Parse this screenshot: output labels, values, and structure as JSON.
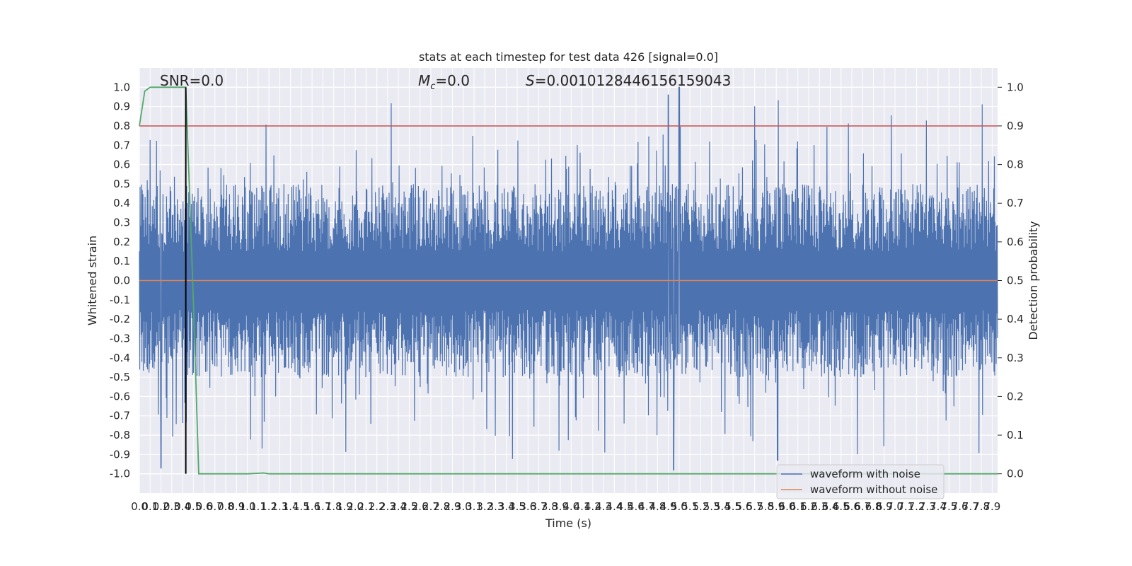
{
  "chart_data": {
    "type": "line",
    "title": "stats at each timestep for test data 426 [signal=0.0]",
    "xlabel": "Time (s)",
    "ylabel": "Whitened strain",
    "y2label": "Detection probability",
    "xlim": [
      0.0,
      7.95
    ],
    "ylim": [
      -1.1,
      1.1
    ],
    "y2lim": [
      -0.05,
      1.05
    ],
    "x_ticks": [
      "0.0",
      "0.1",
      "0.2",
      "0.3",
      "0.4",
      "0.5",
      "0.6",
      "0.7",
      "0.8",
      "0.9",
      "1.0",
      "1.1",
      "1.2",
      "1.3",
      "1.4",
      "1.5",
      "1.6",
      "1.7",
      "1.8",
      "1.9",
      "2.0",
      "2.1",
      "2.2",
      "2.3",
      "2.4",
      "2.5",
      "2.6",
      "2.7",
      "2.8",
      "2.9",
      "3.0",
      "3.1",
      "3.2",
      "3.3",
      "3.4",
      "3.5",
      "3.6",
      "3.7",
      "3.8",
      "3.9",
      "4.0",
      "4.1",
      "4.2",
      "4.3",
      "4.4",
      "4.5",
      "4.6",
      "4.7",
      "4.8",
      "4.9",
      "5.0",
      "5.1",
      "5.2",
      "5.3",
      "5.4",
      "5.5",
      "5.6",
      "5.7",
      "5.8",
      "5.9",
      "6.0",
      "6.1",
      "6.2",
      "6.3",
      "6.4",
      "6.5",
      "6.6",
      "6.7",
      "6.8",
      "6.9",
      "7.0",
      "7.1",
      "7.2",
      "7.3",
      "7.4",
      "7.5",
      "7.6",
      "7.7",
      "7.8",
      "7.9"
    ],
    "y_ticks": [
      "1.0",
      "0.9",
      "0.8",
      "0.7",
      "0.6",
      "0.5",
      "0.4",
      "0.3",
      "0.2",
      "0.1",
      "0.0",
      "-0.1",
      "-0.2",
      "-0.3",
      "-0.4",
      "-0.5",
      "-0.6",
      "-0.7",
      "-0.8",
      "-0.9",
      "-1.0"
    ],
    "y2_ticks": [
      "1.0",
      "0.9",
      "0.8",
      "0.7",
      "0.6",
      "0.5",
      "0.4",
      "0.3",
      "0.2",
      "0.1",
      "0.0"
    ],
    "annotations": {
      "snr": "SNR=0.0",
      "mc": "=0.0",
      "mc_symbol": "M",
      "mc_sub": "c",
      "s": "=0.0010128446156159043",
      "s_symbol": "S"
    },
    "threshold_y2": 0.9,
    "marker_x": 0.43,
    "series": [
      {
        "name": "waveform with noise",
        "color": "#4c72b0",
        "amplitude_envelope": [
          -1.0,
          1.0
        ]
      },
      {
        "name": "waveform without noise",
        "color": "#dd8452",
        "values_constant": 0.0
      },
      {
        "name": "",
        "color": "#55a868",
        "axis": "right",
        "x": [
          0.0,
          0.05,
          0.1,
          0.2,
          0.3,
          0.43,
          0.5,
          0.55,
          1.0,
          1.15,
          1.2,
          2.0,
          4.0,
          6.0,
          7.95
        ],
        "y": [
          0.9,
          0.99,
          1.0,
          1.0,
          1.0,
          1.0,
          0.45,
          0.0,
          0.0,
          0.002,
          0.0,
          0.0,
          0.0,
          0.0,
          0.0
        ]
      }
    ],
    "legend_position": "lower-right",
    "grid": true
  }
}
